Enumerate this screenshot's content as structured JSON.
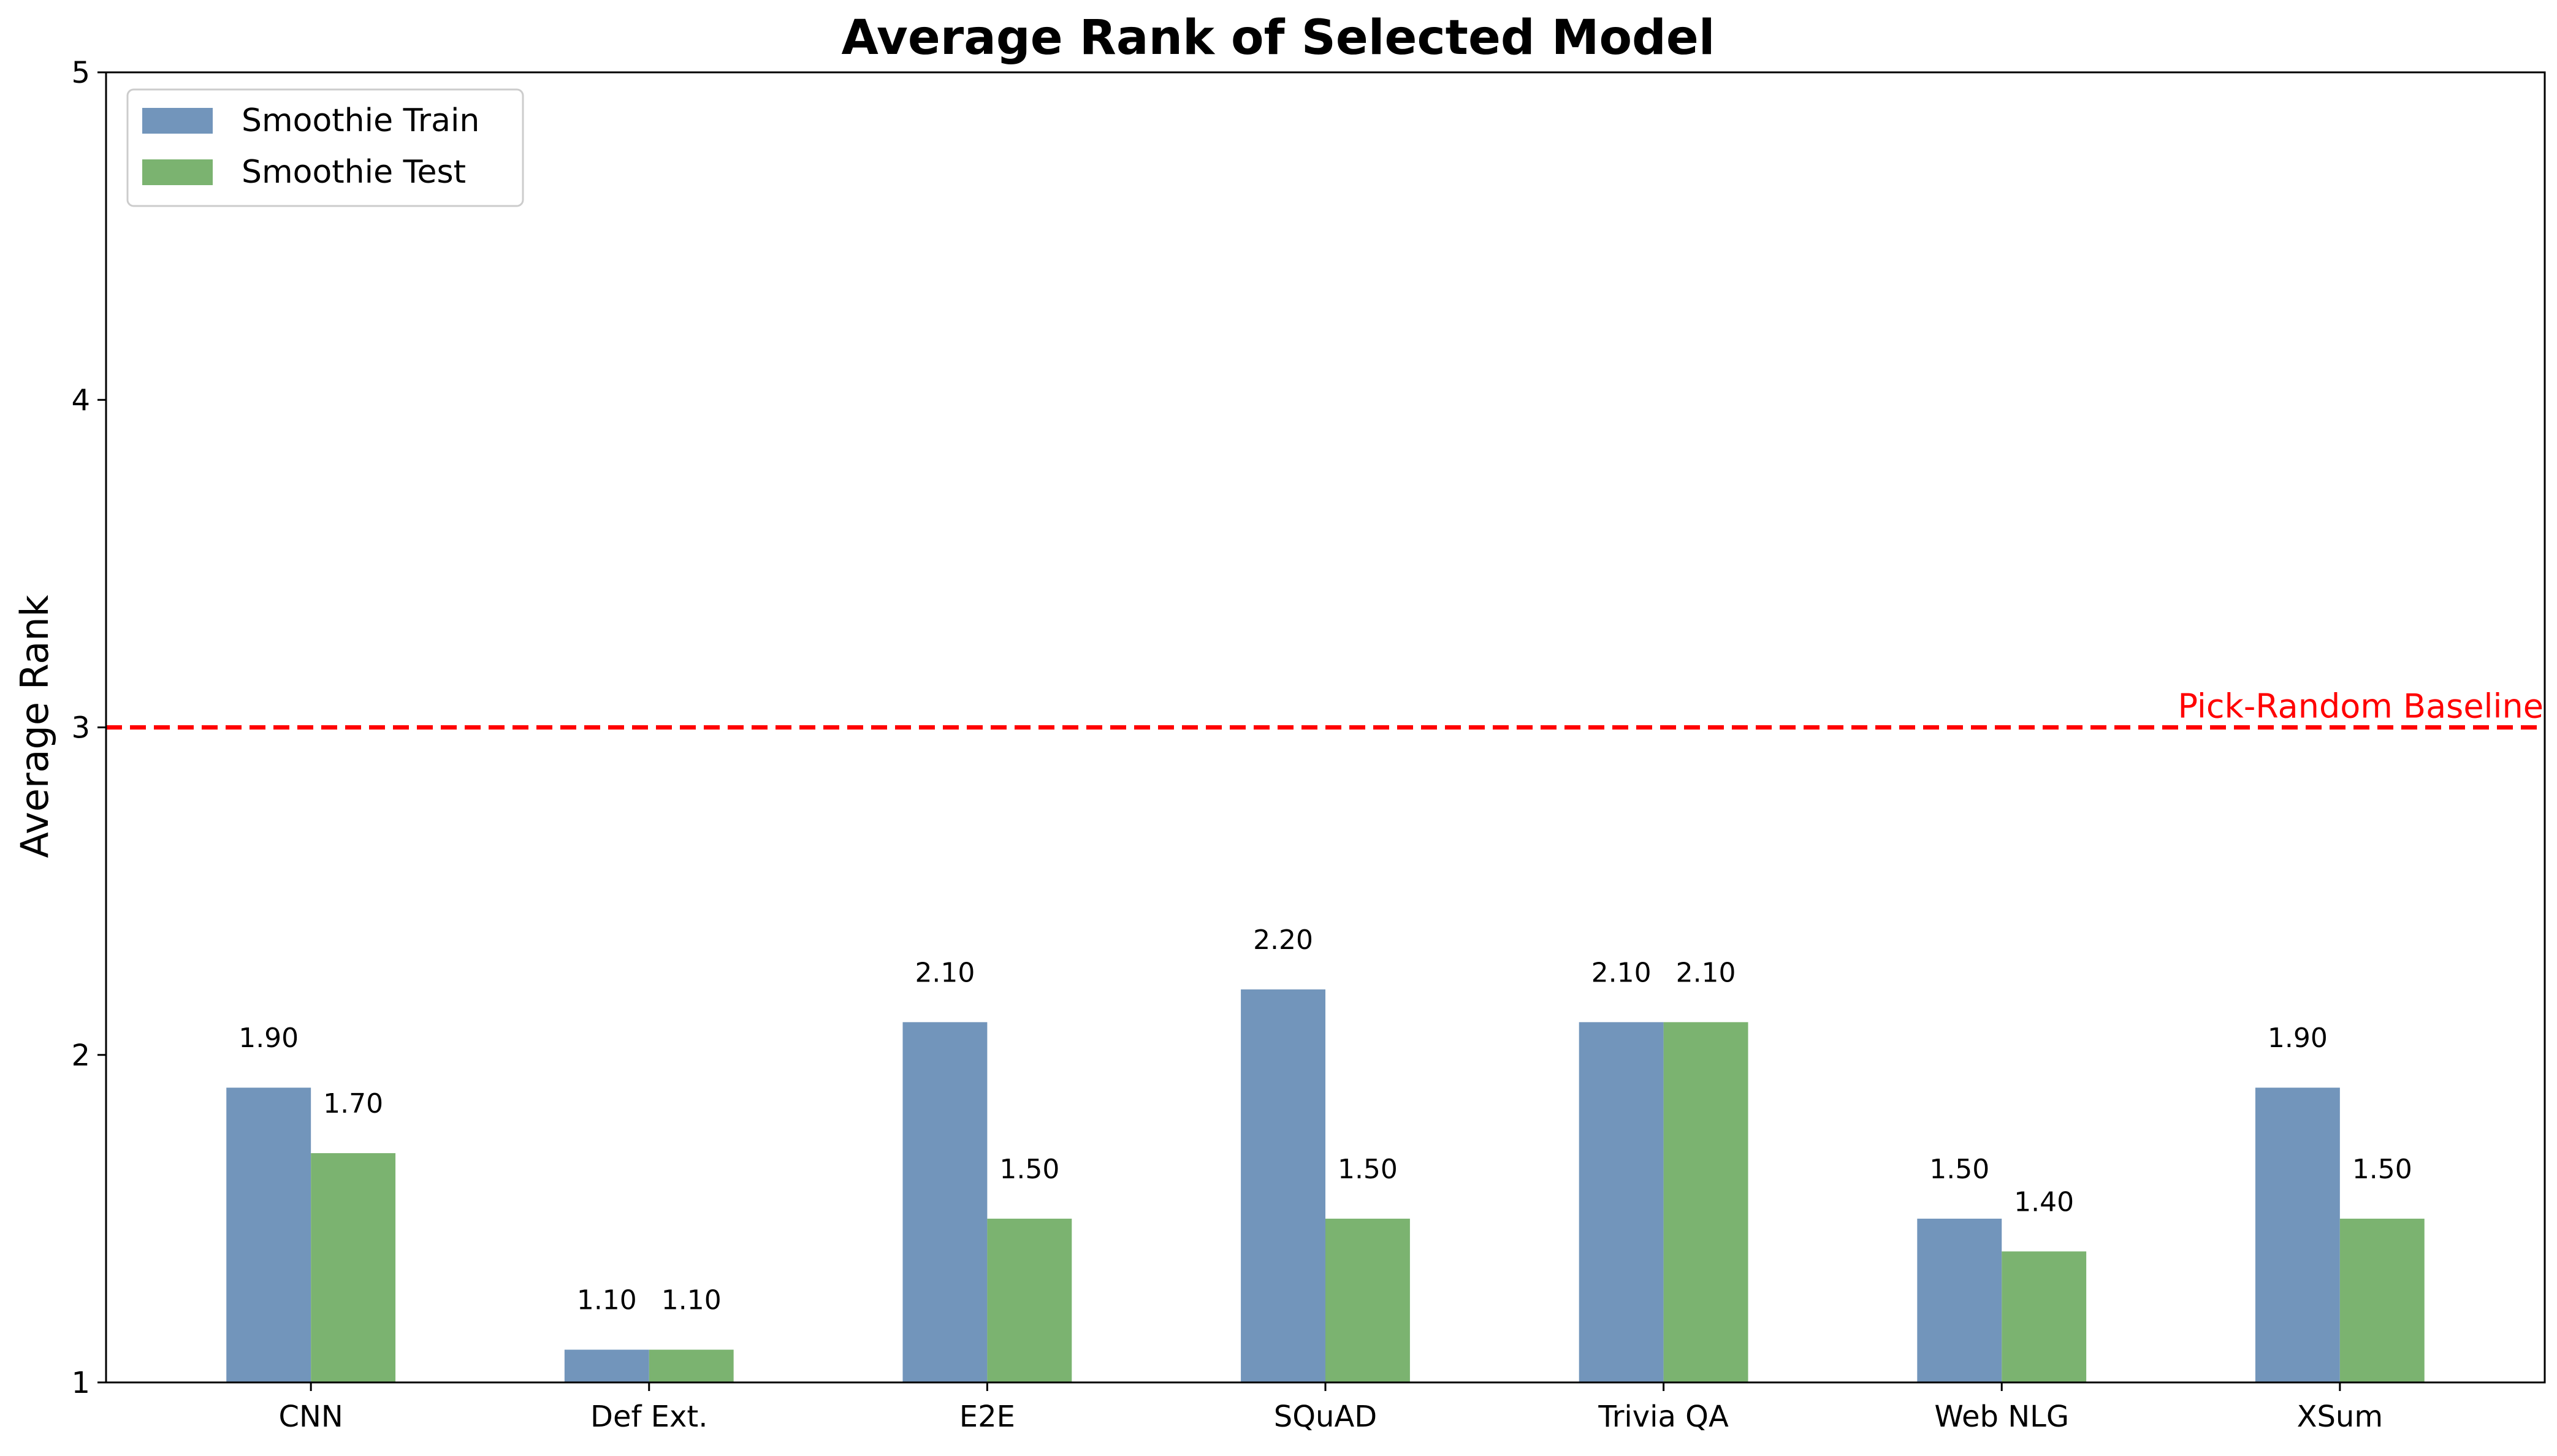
{
  "chart_data": {
    "type": "bar",
    "title": "Average Rank of Selected Model",
    "xlabel": "",
    "ylabel": "Average Rank",
    "categories": [
      "CNN",
      "Def Ext.",
      "E2E",
      "SQuAD",
      "Trivia QA",
      "Web NLG",
      "XSum"
    ],
    "series": [
      {
        "name": "Smoothie Train",
        "color": "#7295bb",
        "values": [
          1.9,
          1.1,
          2.1,
          2.2,
          2.1,
          1.5,
          1.9
        ],
        "labels": [
          "1.90",
          "1.10",
          "2.10",
          "2.20",
          "2.10",
          "1.50",
          "1.90"
        ]
      },
      {
        "name": "Smoothie Test",
        "color": "#7bb370",
        "values": [
          1.7,
          1.1,
          1.5,
          1.5,
          2.1,
          1.4,
          1.5
        ],
        "labels": [
          "1.70",
          "1.10",
          "1.50",
          "1.50",
          "2.10",
          "1.40",
          "1.50"
        ]
      }
    ],
    "ylim": [
      1,
      5
    ],
    "yticks": [
      1,
      2,
      3,
      4,
      5
    ],
    "baseline": {
      "value": 3,
      "label": "Pick-Random Baseline",
      "color": "#ff0000"
    },
    "legend_position": "top-left",
    "grid": false
  }
}
